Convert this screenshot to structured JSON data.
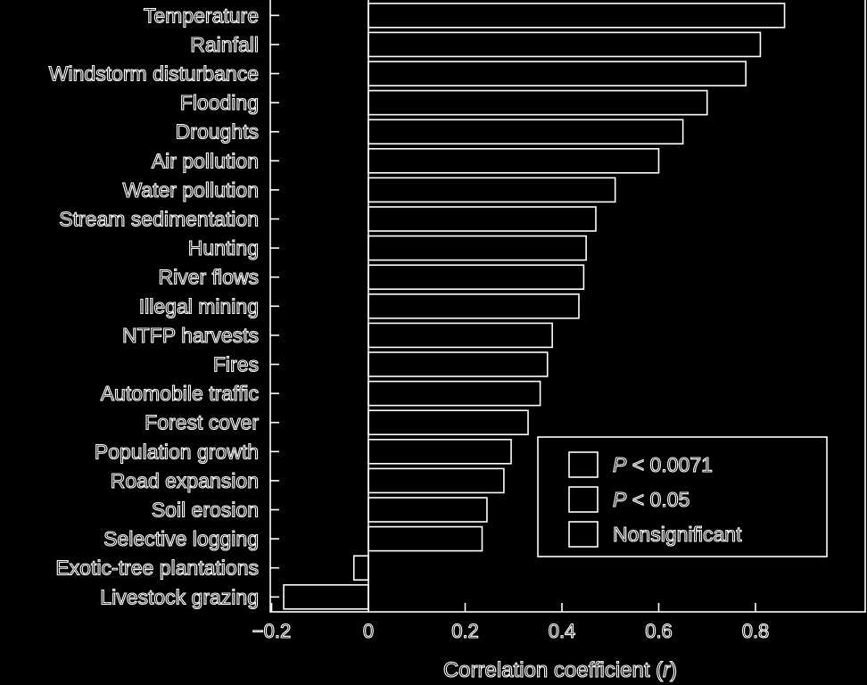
{
  "chart_data": {
    "type": "bar",
    "orientation": "horizontal",
    "categories": [
      "Temperature",
      "Rainfall",
      "Windstorm disturbance",
      "Flooding",
      "Droughts",
      "Air pollution",
      "Water pollution",
      "Stream sedimentation",
      "Hunting",
      "River flows",
      "Illegal mining",
      "NTFP harvests",
      "Fires",
      "Automobile traffic",
      "Forest cover",
      "Population growth",
      "Road expansion",
      "Soil erosion",
      "Selective logging",
      "Exotic-tree plantations",
      "Livestock grazing"
    ],
    "values": [
      0.86,
      0.81,
      0.78,
      0.7,
      0.65,
      0.6,
      0.51,
      0.47,
      0.45,
      0.445,
      0.435,
      0.38,
      0.37,
      0.355,
      0.33,
      0.295,
      0.28,
      0.245,
      0.235,
      -0.03,
      -0.175
    ],
    "xlabel_prefix": "Correlation coefficient (",
    "xlabel_var": "r",
    "xlabel_suffix": ")",
    "xlim": [
      -0.2,
      1.0
    ],
    "xticks": [
      -0.2,
      0,
      0.2,
      0.4,
      0.6,
      0.8
    ],
    "xtick_labels": [
      "−0.2",
      "0",
      "0.2",
      "0.4",
      "0.6",
      "0.8"
    ],
    "grid": false,
    "legend_position": "bottom-right",
    "legend": [
      {
        "italic": "P",
        "rest": " < 0.0071"
      },
      {
        "italic": "P",
        "rest": " < 0.05"
      },
      {
        "italic": "",
        "rest": "Nonsignificant"
      }
    ],
    "colors": {
      "background": "#000000",
      "foreground": "#ffffff"
    }
  }
}
